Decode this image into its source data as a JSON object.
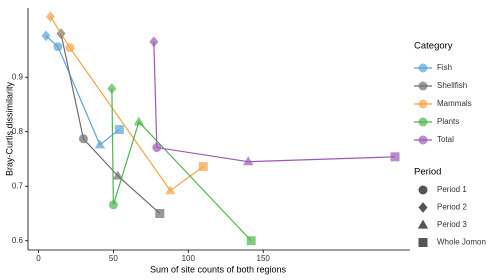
{
  "chart_data": {
    "type": "line",
    "x_label": "Sum of site counts of both regions",
    "y_label": "Bray-Curtis dissimilarity",
    "xlim": [
      -7,
      248
    ],
    "xticks": [
      0,
      50,
      100,
      150
    ],
    "ylim": [
      0.583,
      1.027
    ],
    "yticks": [
      {
        "value": 0.6,
        "label": "0.6"
      },
      {
        "value": 0.7,
        "label": "0.7"
      },
      {
        "value": 0.8,
        "label": "0.8"
      },
      {
        "value": 0.9,
        "label": "0.9"
      }
    ],
    "legend_title": "Category",
    "period_title": "Period",
    "periods": [
      "Period 1",
      "Period 2",
      "Period 3",
      "Whole Jomon"
    ],
    "series": [
      {
        "name": "Fish",
        "color": "#5ba3d9",
        "x": [
          5,
          13,
          41,
          54
        ],
        "values": [
          0.976,
          0.956,
          0.776,
          0.804
        ],
        "period": [
          "Period 2",
          "Period 1",
          "Period 3",
          "Whole Jomon"
        ]
      },
      {
        "name": "Shellfish",
        "color": "#6e6e6e",
        "x": [
          15,
          30,
          53,
          81
        ],
        "values": [
          0.98,
          0.787,
          0.719,
          0.65
        ],
        "period": [
          "Period 2",
          "Period 1",
          "Period 3",
          "Whole Jomon"
        ]
      },
      {
        "name": "Mammals",
        "color": "#f5a244",
        "x": [
          8,
          21,
          88,
          110
        ],
        "values": [
          1.011,
          0.954,
          0.692,
          0.736
        ],
        "period": [
          "Period 2",
          "Period 1",
          "Period 3",
          "Whole Jomon"
        ]
      },
      {
        "name": "Plants",
        "color": "#4cb84c",
        "x": [
          49,
          50,
          67,
          142
        ],
        "values": [
          0.879,
          0.666,
          0.818,
          0.6
        ],
        "period": [
          "Period 2",
          "Period 1",
          "Period 3",
          "Whole Jomon"
        ]
      },
      {
        "name": "Total",
        "color": "#9b59b6",
        "x": [
          77,
          79,
          140,
          238
        ],
        "values": [
          0.965,
          0.771,
          0.745,
          0.754
        ],
        "period": [
          "Period 2",
          "Period 1",
          "Period 3",
          "Whole Jomon"
        ]
      }
    ]
  }
}
